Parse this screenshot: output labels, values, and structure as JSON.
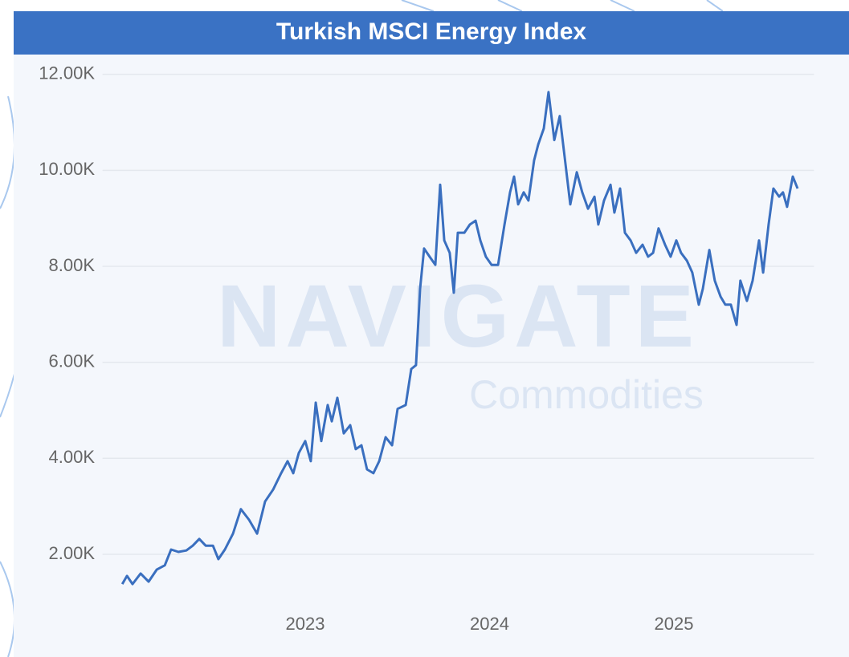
{
  "chart_data": {
    "type": "line",
    "title": "Turkish MSCI Energy Index",
    "watermark": {
      "brand": "NAVIGATE",
      "tagline": "Commodities"
    },
    "x": [
      2022.007,
      2022.033,
      2022.063,
      2022.107,
      2022.15,
      2022.194,
      2022.238,
      2022.272,
      2022.312,
      2022.355,
      2022.39,
      2022.425,
      2022.46,
      2022.499,
      2022.529,
      2022.564,
      2022.608,
      2022.651,
      2022.695,
      2022.739,
      2022.782,
      2022.826,
      2022.869,
      2022.904,
      2022.935,
      2022.965,
      2023.0,
      2023.03,
      2023.057,
      2023.087,
      2023.122,
      2023.144,
      2023.174,
      2023.209,
      2023.244,
      2023.274,
      2023.305,
      2023.335,
      2023.37,
      2023.401,
      2023.436,
      2023.471,
      2023.501,
      2023.545,
      2023.575,
      2023.601,
      2023.623,
      2023.645,
      2023.675,
      2023.706,
      2023.732,
      2023.754,
      2023.784,
      2023.806,
      2023.828,
      2023.863,
      2023.893,
      2023.924,
      2023.95,
      2023.98,
      2024.011,
      2024.046,
      2024.081,
      2024.111,
      2024.133,
      2024.155,
      2024.185,
      2024.211,
      2024.242,
      2024.264,
      2024.294,
      2024.32,
      2024.351,
      2024.381,
      2024.407,
      2024.438,
      2024.473,
      2024.503,
      2024.534,
      2024.569,
      2024.59,
      2024.621,
      2024.656,
      2024.677,
      2024.708,
      2024.734,
      2024.765,
      2024.795,
      2024.83,
      2024.86,
      2024.887,
      2024.917,
      2024.952,
      2024.982,
      2025.013,
      2025.039,
      2025.07,
      2025.1,
      2025.135,
      2025.157,
      2025.192,
      2025.222,
      2025.253,
      2025.279,
      2025.309,
      2025.34,
      2025.361,
      2025.396,
      2025.427,
      2025.462,
      2025.484,
      2025.514,
      2025.54,
      2025.571,
      2025.592,
      2025.614,
      2025.645,
      2025.671
    ],
    "series": [
      {
        "name": "Turkish MSCI Energy Index",
        "color": "#3a6fbf",
        "values": [
          1380,
          1550,
          1380,
          1600,
          1430,
          1680,
          1770,
          2100,
          2050,
          2080,
          2180,
          2320,
          2180,
          2180,
          1900,
          2100,
          2430,
          2940,
          2720,
          2430,
          3100,
          3350,
          3690,
          3940,
          3690,
          4110,
          4360,
          3940,
          5160,
          4360,
          5110,
          4770,
          5260,
          4520,
          4690,
          4190,
          4270,
          3770,
          3690,
          3940,
          4440,
          4270,
          5030,
          5110,
          5860,
          5940,
          7530,
          8370,
          8200,
          8030,
          9700,
          8540,
          8280,
          7450,
          8700,
          8700,
          8870,
          8950,
          8540,
          8200,
          8030,
          8030,
          8870,
          9540,
          9870,
          9290,
          9540,
          9370,
          10210,
          10540,
          10870,
          11630,
          10630,
          11130,
          10290,
          9290,
          9960,
          9540,
          9200,
          9450,
          8870,
          9370,
          9700,
          9120,
          9620,
          8700,
          8540,
          8280,
          8450,
          8200,
          8280,
          8790,
          8450,
          8200,
          8540,
          8280,
          8120,
          7870,
          7200,
          7530,
          8340,
          7700,
          7370,
          7200,
          7200,
          6780,
          7700,
          7280,
          7700,
          8540,
          7870,
          8870,
          9620,
          9450,
          9540,
          9240,
          9870,
          9620
        ]
      }
    ],
    "xlim": [
      2021.9,
      2025.76
    ],
    "xticks": [
      2023,
      2024,
      2025
    ],
    "ylim": [
      1000,
      12300
    ],
    "yticks": [
      {
        "value": 2000,
        "label": "2.00K"
      },
      {
        "value": 4000,
        "label": "4.00K"
      },
      {
        "value": 6000,
        "label": "6.00K"
      },
      {
        "value": 8000,
        "label": "8.00K"
      },
      {
        "value": 10000,
        "label": "10.00K"
      },
      {
        "value": 12000,
        "label": "12.00K"
      }
    ],
    "grid": true
  }
}
